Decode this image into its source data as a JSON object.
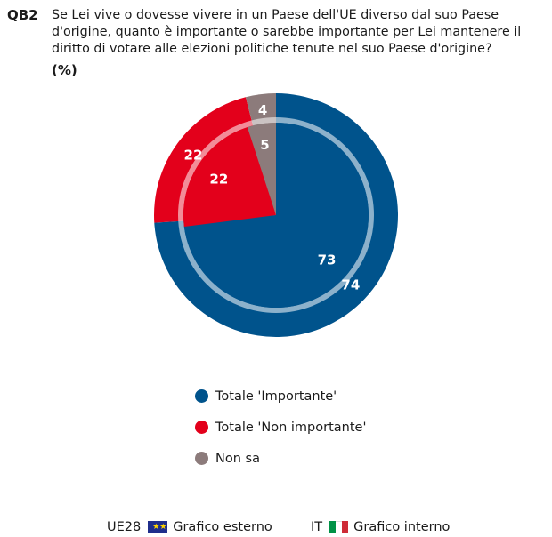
{
  "question": {
    "code": "QB2",
    "text": "Se Lei vive o dovesse vivere in un Paese dell'UE diverso dal suo Paese d'origine, quanto è importante o sarebbe importante per Lei mantenere il diritto di votare alle elezioni politiche tenute nel suo Paese d'origine?",
    "unit": "(%)"
  },
  "chart_data": {
    "type": "pie",
    "title": "",
    "categories": [
      "Totale 'Importante'",
      "Totale 'Non importante'",
      "Non sa"
    ],
    "colors": [
      "#00538c",
      "#e3001b",
      "#8c7b7b"
    ],
    "series": [
      {
        "name": "Grafico esterno",
        "values": [
          74,
          22,
          4
        ]
      },
      {
        "name": "Grafico interno",
        "values": [
          73,
          22,
          5
        ]
      }
    ],
    "legend_position": "bottom"
  },
  "legend": {
    "items": [
      {
        "label": "Totale 'Importante'",
        "color": "#00538c"
      },
      {
        "label": "Totale 'Non importante'",
        "color": "#e3001b"
      },
      {
        "label": "Non sa",
        "color": "#8c7b7b"
      }
    ]
  },
  "footer": {
    "outer_region": "UE28",
    "outer_label": "Grafico esterno",
    "inner_region": "IT",
    "inner_label": "Grafico interno",
    "eu_flag_icon": "eu-flag-icon",
    "it_flag_icon": "italy-flag-icon"
  }
}
